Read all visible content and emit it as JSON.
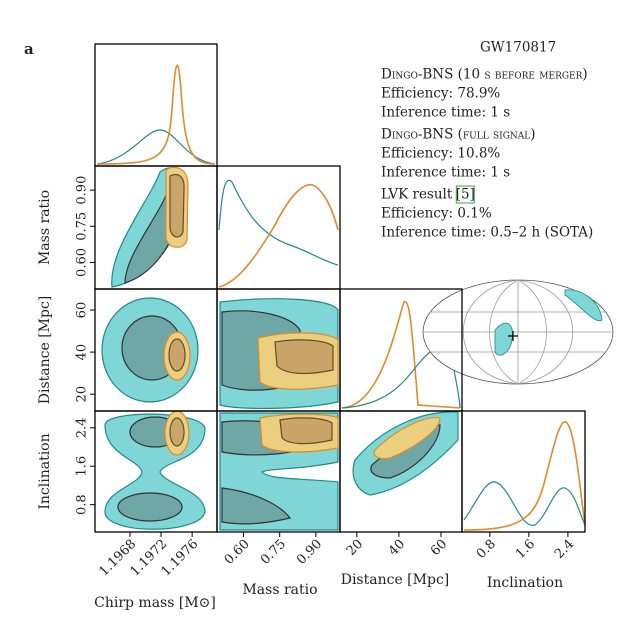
{
  "panel_label": "a",
  "chart_data": {
    "type": "corner",
    "title": "GW170817",
    "parameters": [
      {
        "label": "Chirp mass [M⊙]",
        "lim": [
          1.19635,
          1.19792
        ],
        "ticks": [
          1.1968,
          1.1972,
          1.1976
        ]
      },
      {
        "label": "Mass ratio",
        "lim": [
          0.49,
          1.0
        ],
        "ticks": [
          {
            "value": 0.6,
            "label": "0.60"
          },
          0.75,
          {
            "value": 0.9,
            "label": "0.90"
          }
        ]
      },
      {
        "label": "Distance [Mpc]",
        "lim": [
          12,
          70
        ],
        "ticks": [
          20,
          40,
          60
        ]
      },
      {
        "label": "Inclination",
        "lim": [
          0.23,
          2.75
        ],
        "ticks": [
          0.8,
          1.6,
          2.4
        ]
      }
    ],
    "legend": [
      {
        "name": "Dingo-BNS (10 s before merger)",
        "color": "#1f8a8a",
        "lines": [
          "Efficiency: 78.9%",
          "Inference time: 1 s"
        ]
      },
      {
        "name": "Dingo-BNS (full signal)",
        "color": "#e08a2c",
        "lines": [
          "Efficiency: 10.8%",
          "Inference time: 1 s"
        ]
      },
      {
        "name": "LVK result",
        "citation": "[5]",
        "color": "#222222",
        "lines": [
          "Efficiency: 0.1%",
          "Inference time: 0.5–2 h (SOTA)"
        ]
      }
    ]
  }
}
